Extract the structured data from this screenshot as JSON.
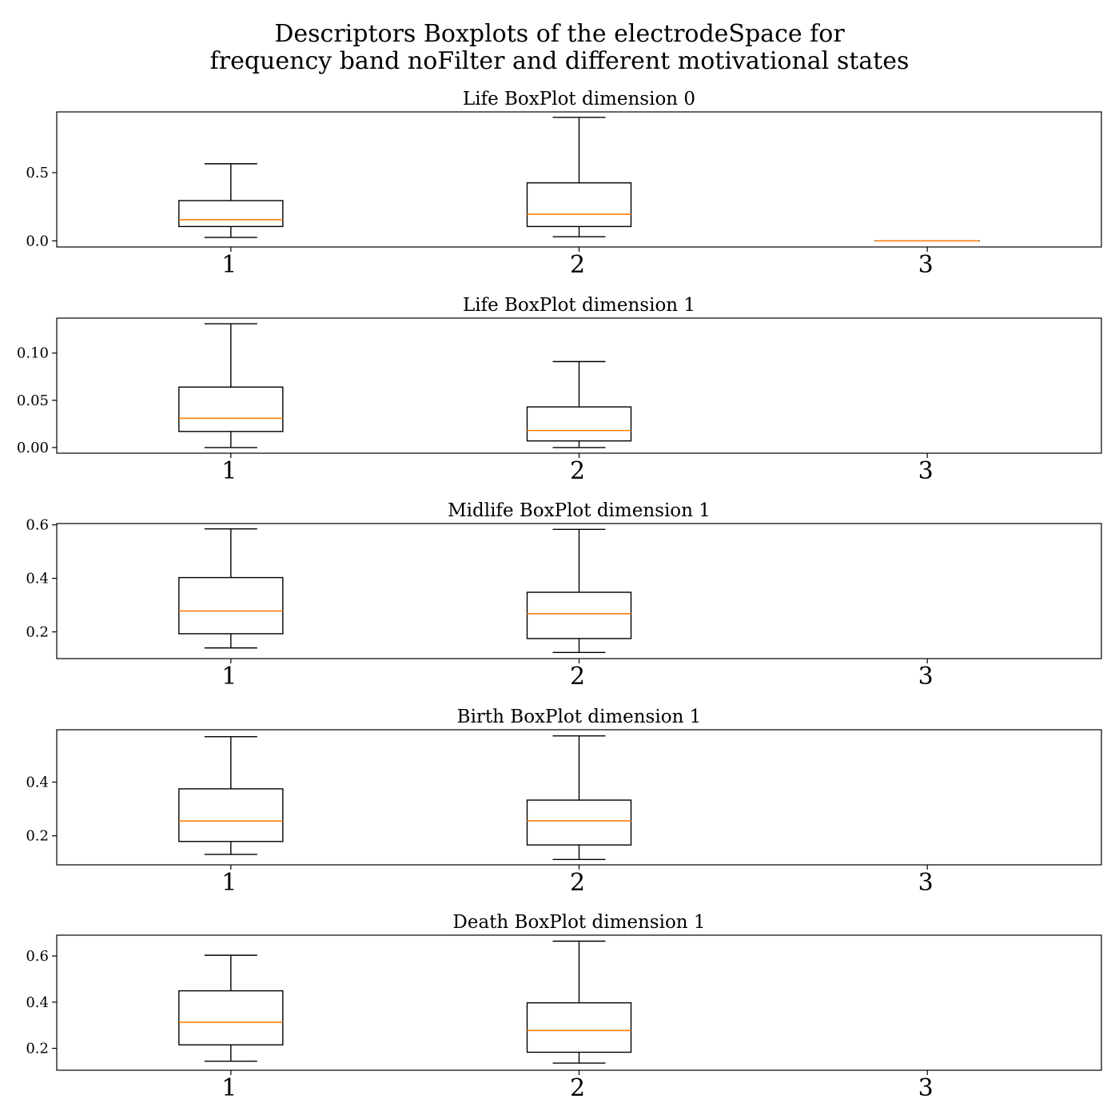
{
  "chart_data": {
    "type": "boxplot",
    "title": "Descriptors Boxplots of the electrodeSpace for\nfrequency band noFilter and different motivational states",
    "categories": [
      "1",
      "2",
      "3"
    ],
    "colors": {
      "box": "#000000",
      "median": "#ff7f0e"
    },
    "grid": false,
    "panels": [
      {
        "title": "Life BoxPlot dimension 0",
        "ylim": [
          -0.045,
          0.945
        ],
        "yticks": [
          0.0,
          0.5
        ],
        "ytick_labels": [
          "0.0",
          "0.5"
        ],
        "boxes": [
          {
            "category": "1",
            "whislo": 0.025,
            "q1": 0.105,
            "med": 0.155,
            "q3": 0.295,
            "whishi": 0.565
          },
          {
            "category": "2",
            "whislo": 0.03,
            "q1": 0.105,
            "med": 0.195,
            "q3": 0.425,
            "whishi": 0.905
          },
          {
            "category": "3",
            "whislo": 0.0,
            "q1": 0.0,
            "med": 0.0,
            "q3": 0.0,
            "whishi": 0.0
          }
        ]
      },
      {
        "title": "Life BoxPlot dimension 1",
        "ylim": [
          -0.006,
          0.137
        ],
        "yticks": [
          0.0,
          0.05,
          0.1
        ],
        "ytick_labels": [
          "0.00",
          "0.05",
          "0.10"
        ],
        "boxes": [
          {
            "category": "1",
            "whislo": 0.0,
            "q1": 0.017,
            "med": 0.031,
            "q3": 0.064,
            "whishi": 0.131
          },
          {
            "category": "2",
            "whislo": 0.0,
            "q1": 0.007,
            "med": 0.018,
            "q3": 0.043,
            "whishi": 0.091
          },
          {
            "category": "3",
            "whislo": null,
            "q1": null,
            "med": null,
            "q3": null,
            "whishi": null
          }
        ]
      },
      {
        "title": "Midlife BoxPlot dimension 1",
        "ylim": [
          0.1,
          0.605
        ],
        "yticks": [
          0.2,
          0.4,
          0.6
        ],
        "ytick_labels": [
          "0.2",
          "0.4",
          "0.6"
        ],
        "boxes": [
          {
            "category": "1",
            "whislo": 0.14,
            "q1": 0.193,
            "med": 0.278,
            "q3": 0.403,
            "whishi": 0.585
          },
          {
            "category": "2",
            "whislo": 0.123,
            "q1": 0.175,
            "med": 0.268,
            "q3": 0.348,
            "whishi": 0.583
          },
          {
            "category": "3",
            "whislo": null,
            "q1": null,
            "med": null,
            "q3": null,
            "whishi": null
          }
        ]
      },
      {
        "title": "Birth BoxPlot dimension 1",
        "ylim": [
          0.092,
          0.595
        ],
        "yticks": [
          0.2,
          0.4
        ],
        "ytick_labels": [
          "0.2",
          "0.4"
        ],
        "boxes": [
          {
            "category": "1",
            "whislo": 0.131,
            "q1": 0.179,
            "med": 0.255,
            "q3": 0.375,
            "whishi": 0.569
          },
          {
            "category": "2",
            "whislo": 0.112,
            "q1": 0.166,
            "med": 0.256,
            "q3": 0.333,
            "whishi": 0.572
          },
          {
            "category": "3",
            "whislo": null,
            "q1": null,
            "med": null,
            "q3": null,
            "whishi": null
          }
        ]
      },
      {
        "title": "Death BoxPlot dimension 1",
        "ylim": [
          0.105,
          0.69
        ],
        "yticks": [
          0.2,
          0.4,
          0.6
        ],
        "ytick_labels": [
          "0.2",
          "0.4",
          "0.6"
        ],
        "boxes": [
          {
            "category": "1",
            "whislo": 0.144,
            "q1": 0.215,
            "med": 0.313,
            "q3": 0.449,
            "whishi": 0.603
          },
          {
            "category": "2",
            "whislo": 0.136,
            "q1": 0.183,
            "med": 0.277,
            "q3": 0.397,
            "whishi": 0.664
          },
          {
            "category": "3",
            "whislo": null,
            "q1": null,
            "med": null,
            "q3": null,
            "whishi": null
          }
        ]
      }
    ]
  }
}
